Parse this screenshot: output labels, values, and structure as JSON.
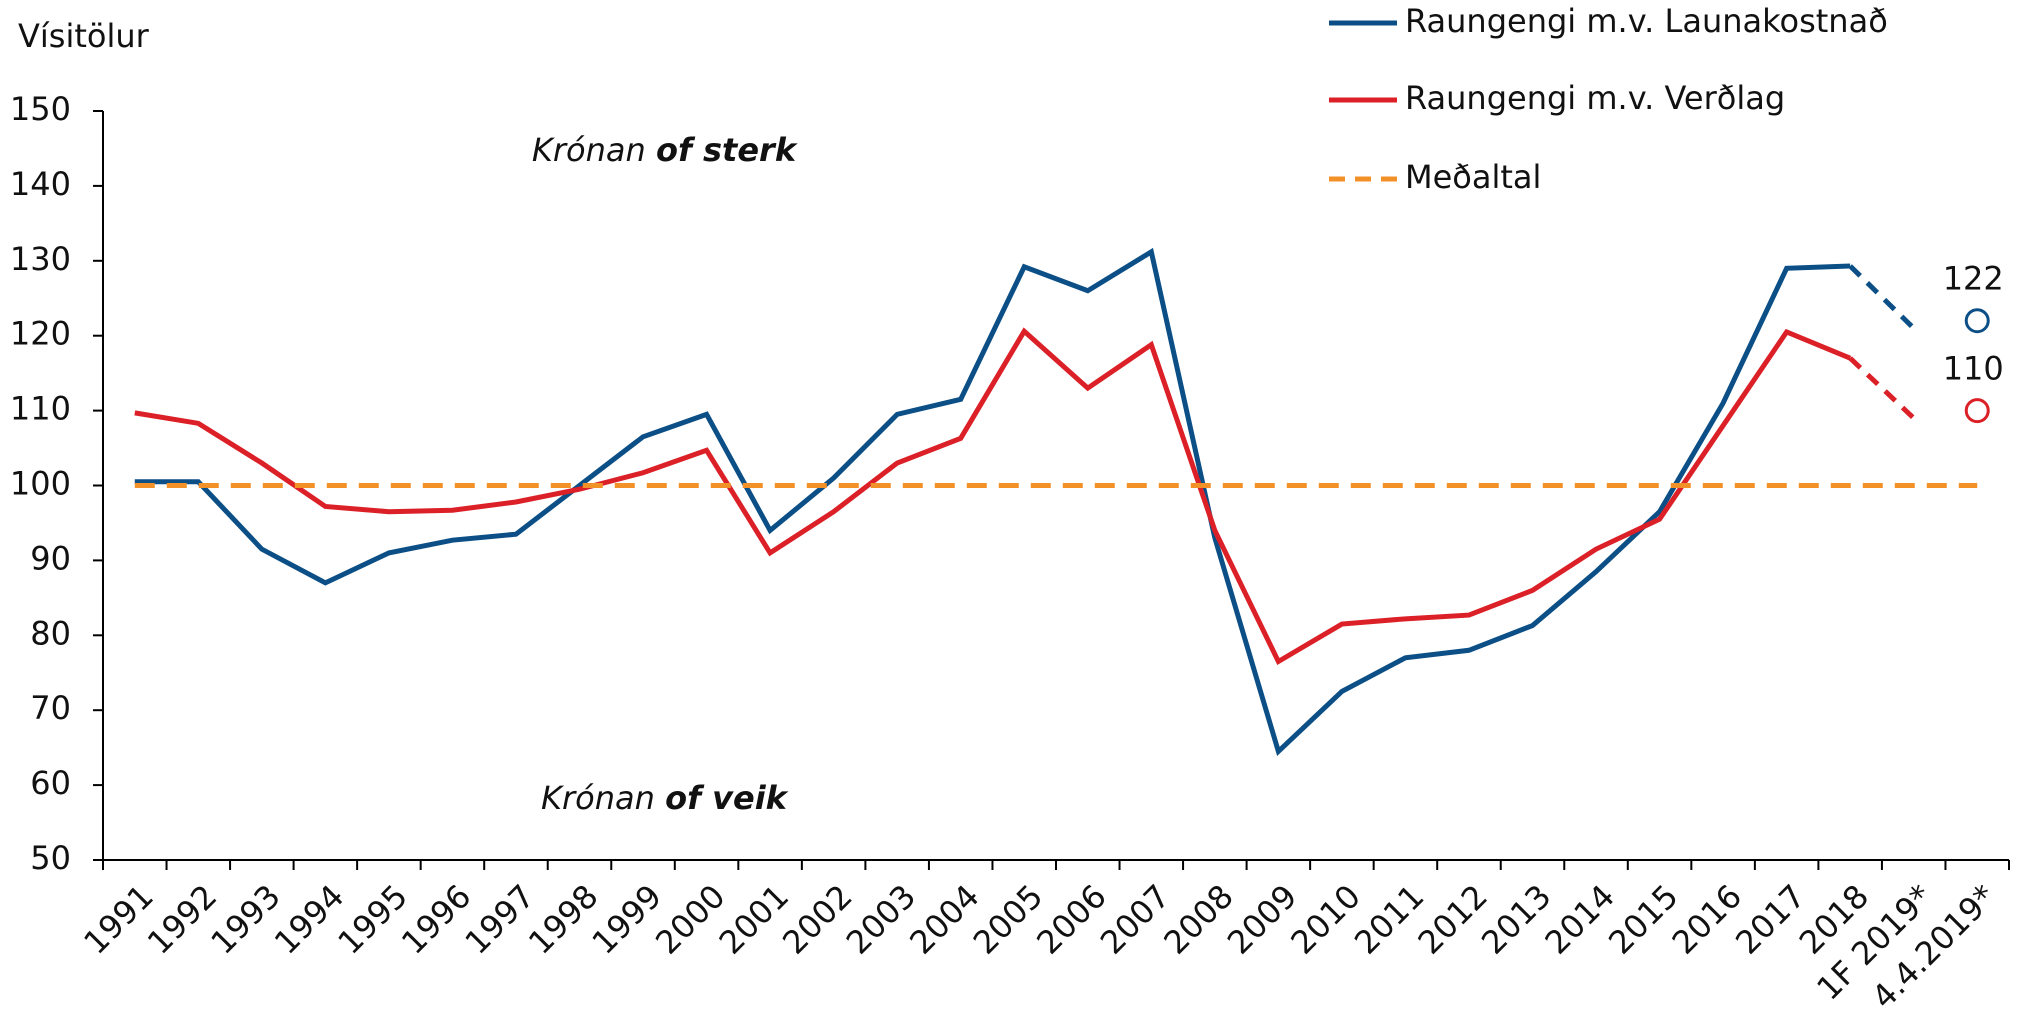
{
  "chart_data": {
    "type": "line",
    "y_label": "Vísitölur",
    "categories": [
      "1991",
      "1992",
      "1993",
      "1994",
      "1995",
      "1996",
      "1997",
      "1998",
      "1999",
      "2000",
      "2001",
      "2002",
      "2003",
      "2004",
      "2005",
      "2006",
      "2007",
      "2008",
      "2009",
      "2010",
      "2011",
      "2012",
      "2013",
      "2014",
      "2015",
      "2016",
      "2017",
      "2018",
      "1F 2019*",
      "4.4.2019*"
    ],
    "series": [
      {
        "name": "Raungengi m.v. Launakostnað",
        "color": "#0b4f86",
        "values": [
          100.5,
          100.5,
          91.5,
          87,
          91,
          92.7,
          93.5,
          100,
          106.5,
          109.5,
          94,
          101,
          109.5,
          111.5,
          129.2,
          126,
          131.2,
          93,
          64.5,
          72.5,
          77,
          78,
          81.3,
          88.5,
          96.5,
          111,
          129,
          129.3,
          121,
          122
        ]
      },
      {
        "name": "Raungengi m.v. Verðlag",
        "color": "#dc2027",
        "values": [
          109.7,
          108.3,
          103,
          97.2,
          96.5,
          96.7,
          97.8,
          99.5,
          101.7,
          104.7,
          91,
          96.5,
          103,
          106.3,
          120.6,
          113,
          118.8,
          94,
          76.5,
          81.5,
          82.2,
          82.7,
          86,
          91.5,
          95.5,
          108,
          120.5,
          117,
          109,
          110
        ]
      },
      {
        "name": "Meðaltal",
        "color": "#f39129",
        "dashed": true,
        "values": [
          100,
          100,
          100,
          100,
          100,
          100,
          100,
          100,
          100,
          100,
          100,
          100,
          100,
          100,
          100,
          100,
          100,
          100,
          100,
          100,
          100,
          100,
          100,
          100,
          100,
          100,
          100,
          100,
          100,
          100
        ]
      }
    ],
    "annotations": [
      [
        "Krónan",
        "of sterk"
      ],
      [
        "Krónan",
        "of veik"
      ]
    ],
    "ylim": [
      50,
      150
    ],
    "yticks": [
      50,
      60,
      70,
      80,
      90,
      100,
      110,
      120,
      130,
      140,
      150
    ],
    "grid": false
  }
}
